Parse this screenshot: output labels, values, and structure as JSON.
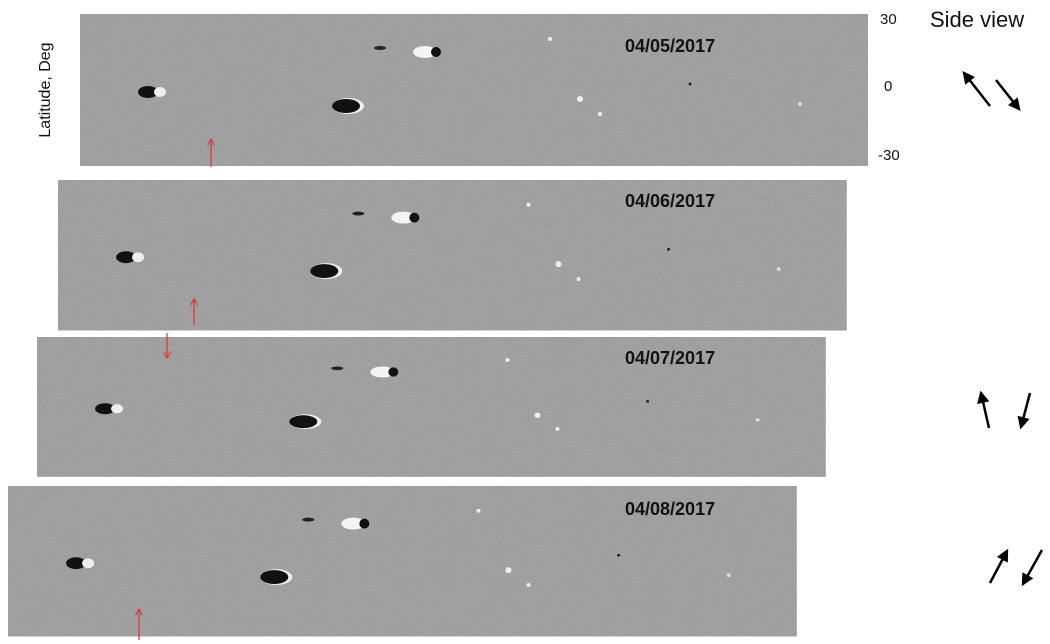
{
  "axis": {
    "label": "Latitude, Deg",
    "ticks": [
      "30",
      "0",
      "-30"
    ]
  },
  "side_view": "Side view",
  "panels": [
    {
      "date": "04/05/2017"
    },
    {
      "date": "04/06/2017"
    },
    {
      "date": "04/07/2017"
    },
    {
      "date": "04/08/2017"
    }
  ]
}
